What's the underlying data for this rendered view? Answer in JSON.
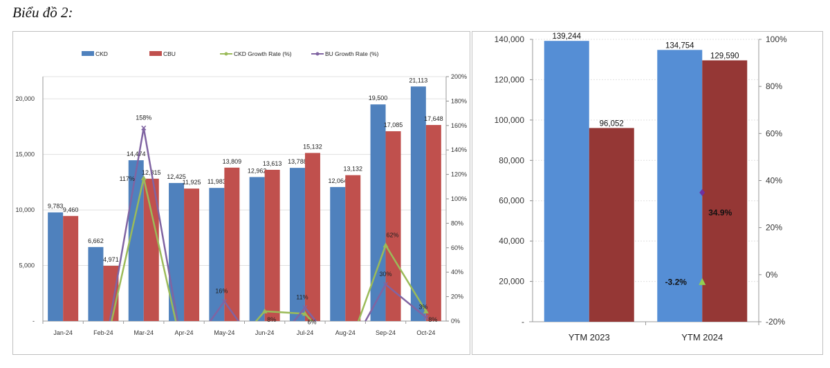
{
  "heading": "Biểu đồ 2:",
  "chart_data": [
    {
      "type": "bar",
      "categories": [
        "Jan-24",
        "Feb-24",
        "Mar-24",
        "Apr-24",
        "May-24",
        "Jun-24",
        "Jul-24",
        "Aug-24",
        "Sep-24",
        "Oct-24"
      ],
      "series": [
        {
          "name": "CKD",
          "kind": "bar",
          "axis": "left",
          "color": "#4f81bd",
          "values": [
            9783,
            6662,
            14474,
            12425,
            11983,
            12962,
            13788,
            12064,
            19500,
            21113
          ],
          "labels": [
            "9,783",
            "6,662",
            "14,474",
            "12,425",
            "11,983",
            "12,962",
            "13,788",
            "12,064",
            "19,500",
            "21,113"
          ]
        },
        {
          "name": "CBU",
          "kind": "bar",
          "axis": "left",
          "color": "#c0504d",
          "values": [
            9460,
            4971,
            12815,
            11925,
            13809,
            13613,
            15132,
            13132,
            17085,
            17648
          ],
          "labels": [
            "9,460",
            "4,971",
            "12,815",
            "11,925",
            "13,809",
            "13,613",
            "15,132",
            "13,132",
            "17,085",
            "17,648"
          ]
        },
        {
          "name": "CKD Growth Rate (%)",
          "kind": "line",
          "marker": "triangle",
          "axis": "right",
          "color": "#9bbb59",
          "values": [
            null,
            null,
            117,
            null,
            null,
            8,
            6,
            null,
            62,
            8
          ],
          "labels": [
            "",
            "",
            "117%",
            "",
            "",
            "8%",
            "6%",
            "",
            "62%",
            "8%"
          ]
        },
        {
          "name": "BU Growth Rate (%)",
          "kind": "line",
          "marker": "x",
          "axis": "right",
          "color": "#8064a2",
          "values": [
            null,
            null,
            158,
            null,
            16,
            null,
            11,
            null,
            30,
            3
          ],
          "labels": [
            "",
            "",
            "158%",
            "",
            "16%",
            "",
            "11%",
            "",
            "30%",
            "3%"
          ]
        }
      ],
      "y_left": {
        "range": [
          0,
          22000
        ],
        "ticks": [
          0,
          5000,
          10000,
          15000,
          20000
        ],
        "tick_labels": [
          "-",
          "5,000",
          "10,000",
          "15,000",
          "20,000"
        ]
      },
      "y_right": {
        "range": [
          0,
          200
        ],
        "ticks": [
          0,
          20,
          40,
          60,
          80,
          100,
          120,
          140,
          160,
          180,
          200
        ],
        "tick_labels": [
          "0%",
          "20%",
          "40%",
          "60%",
          "80%",
          "100%",
          "120%",
          "140%",
          "160%",
          "180%",
          "200%"
        ]
      },
      "grid": true,
      "legend": "top"
    },
    {
      "type": "bar",
      "categories": [
        "YTM 2023",
        "YTM 2024"
      ],
      "series": [
        {
          "kind": "bar",
          "axis": "left",
          "color": "#558ed5",
          "values": [
            139244,
            134754
          ],
          "labels": [
            "139,244",
            "134,754"
          ]
        },
        {
          "kind": "bar",
          "axis": "left",
          "color": "#953735",
          "values": [
            96052,
            129590
          ],
          "labels": [
            "96,052",
            "129,590"
          ]
        },
        {
          "kind": "point",
          "marker": "triangle",
          "axis": "right",
          "color": "#92d050",
          "values": [
            null,
            -3.2
          ],
          "labels": [
            "",
            "-3.2%"
          ]
        },
        {
          "kind": "point",
          "marker": "diamond",
          "axis": "right",
          "color": "#7030a0",
          "values": [
            null,
            34.9
          ],
          "labels": [
            "",
            "34.9%"
          ]
        }
      ],
      "y_left": {
        "range": [
          0,
          140000
        ],
        "ticks": [
          0,
          20000,
          40000,
          60000,
          80000,
          100000,
          120000,
          140000
        ],
        "tick_labels": [
          "-",
          "20,000",
          "40,000",
          "60,000",
          "80,000",
          "100,000",
          "120,000",
          "140,000"
        ]
      },
      "y_right": {
        "range": [
          -20,
          100
        ],
        "ticks": [
          -20,
          0,
          20,
          40,
          60,
          80,
          100
        ],
        "tick_labels": [
          "-20%",
          "0%",
          "20%",
          "40%",
          "60%",
          "80%",
          "100%"
        ]
      },
      "grid": true
    }
  ]
}
